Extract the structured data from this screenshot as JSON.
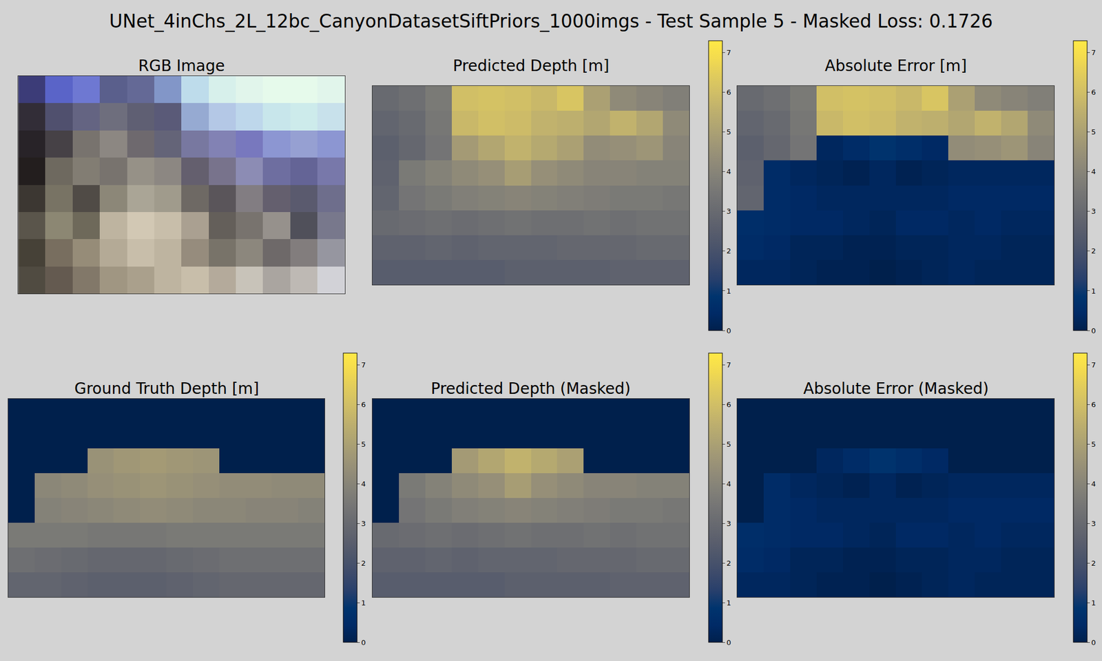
{
  "title": "UNet_4inChs_2L_12bc_CanyonDatasetSiftPriors_1000imgs - Test Sample 5 - Masked Loss: 0.1726",
  "chart_data": [
    {
      "type": "image",
      "title": "RGB Image",
      "tick_labels": false,
      "z": [
        [
          [
            60,
            60,
            120
          ],
          [
            90,
            100,
            200
          ],
          [
            110,
            120,
            210
          ],
          [
            90,
            95,
            140
          ],
          [
            100,
            105,
            150
          ],
          [
            130,
            150,
            200
          ],
          [
            190,
            220,
            235
          ],
          [
            215,
            240,
            235
          ],
          [
            225,
            245,
            235
          ],
          [
            230,
            250,
            235
          ],
          [
            230,
            250,
            235
          ],
          [
            225,
            245,
            235
          ]
        ],
        [
          [
            50,
            45,
            55
          ],
          [
            80,
            80,
            110
          ],
          [
            100,
            100,
            130
          ],
          [
            110,
            110,
            125
          ],
          [
            95,
            95,
            115
          ],
          [
            90,
            90,
            120
          ],
          [
            150,
            170,
            210
          ],
          [
            180,
            200,
            230
          ],
          [
            190,
            215,
            235
          ],
          [
            200,
            230,
            235
          ],
          [
            205,
            235,
            235
          ],
          [
            200,
            225,
            235
          ]
        ],
        [
          [
            40,
            35,
            40
          ],
          [
            70,
            65,
            70
          ],
          [
            120,
            115,
            110
          ],
          [
            140,
            135,
            130
          ],
          [
            110,
            105,
            110
          ],
          [
            100,
            100,
            120
          ],
          [
            120,
            120,
            160
          ],
          [
            130,
            130,
            180
          ],
          [
            120,
            120,
            190
          ],
          [
            140,
            150,
            210
          ],
          [
            150,
            160,
            210
          ],
          [
            140,
            150,
            210
          ]
        ],
        [
          [
            35,
            30,
            30
          ],
          [
            110,
            105,
            95
          ],
          [
            130,
            125,
            115
          ],
          [
            120,
            115,
            110
          ],
          [
            150,
            145,
            135
          ],
          [
            140,
            135,
            130
          ],
          [
            100,
            95,
            110
          ],
          [
            120,
            115,
            140
          ],
          [
            140,
            140,
            180
          ],
          [
            110,
            110,
            160
          ],
          [
            100,
            100,
            150
          ],
          [
            120,
            120,
            170
          ]
        ],
        [
          [
            60,
            55,
            50
          ],
          [
            120,
            115,
            100
          ],
          [
            80,
            75,
            70
          ],
          [
            140,
            135,
            120
          ],
          [
            170,
            165,
            150
          ],
          [
            160,
            155,
            140
          ],
          [
            110,
            105,
            100
          ],
          [
            90,
            85,
            90
          ],
          [
            130,
            125,
            130
          ],
          [
            100,
            95,
            110
          ],
          [
            90,
            90,
            110
          ],
          [
            110,
            110,
            140
          ]
        ],
        [
          [
            90,
            85,
            75
          ],
          [
            140,
            135,
            115
          ],
          [
            110,
            105,
            90
          ],
          [
            190,
            180,
            160
          ],
          [
            210,
            200,
            180
          ],
          [
            200,
            190,
            170
          ],
          [
            170,
            160,
            145
          ],
          [
            100,
            95,
            90
          ],
          [
            120,
            115,
            110
          ],
          [
            150,
            145,
            140
          ],
          [
            80,
            80,
            90
          ],
          [
            120,
            120,
            140
          ]
        ],
        [
          [
            70,
            65,
            55
          ],
          [
            120,
            110,
            95
          ],
          [
            150,
            140,
            120
          ],
          [
            180,
            170,
            150
          ],
          [
            200,
            190,
            170
          ],
          [
            190,
            180,
            160
          ],
          [
            150,
            140,
            125
          ],
          [
            120,
            115,
            105
          ],
          [
            140,
            135,
            125
          ],
          [
            110,
            105,
            105
          ],
          [
            130,
            125,
            125
          ],
          [
            150,
            150,
            160
          ]
        ],
        [
          [
            80,
            75,
            65
          ],
          [
            100,
            90,
            80
          ],
          [
            130,
            120,
            105
          ],
          [
            160,
            150,
            130
          ],
          [
            170,
            160,
            140
          ],
          [
            190,
            180,
            160
          ],
          [
            200,
            190,
            170
          ],
          [
            180,
            170,
            155
          ],
          [
            200,
            195,
            185
          ],
          [
            170,
            165,
            160
          ],
          [
            190,
            185,
            180
          ],
          [
            210,
            210,
            215
          ]
        ]
      ]
    },
    {
      "type": "heatmap",
      "title": "Predicted Depth [m]",
      "color": "cividis",
      "tick_labels": false,
      "colorbar_range": [
        0,
        7.3
      ],
      "colorbar_ticks": [
        0,
        1,
        2,
        3,
        4,
        5,
        6,
        7
      ],
      "z": [
        [
          3.0,
          3.2,
          3.6,
          6.0,
          6.1,
          6.0,
          5.8,
          6.2,
          5.0,
          4.2,
          4.0,
          3.8
        ],
        [
          2.8,
          3.0,
          3.5,
          5.8,
          6.0,
          5.9,
          5.6,
          5.5,
          5.2,
          5.6,
          5.2,
          4.2
        ],
        [
          2.6,
          2.9,
          3.4,
          4.8,
          5.2,
          5.6,
          5.3,
          5.0,
          4.3,
          4.4,
          4.6,
          4.0
        ],
        [
          2.7,
          3.6,
          3.9,
          4.2,
          4.4,
          4.9,
          4.4,
          4.2,
          4.0,
          4.0,
          3.9,
          3.9
        ],
        [
          2.8,
          3.4,
          3.6,
          3.8,
          3.9,
          4.0,
          3.9,
          3.8,
          3.7,
          3.6,
          3.6,
          3.5
        ],
        [
          3.0,
          3.1,
          3.2,
          3.1,
          3.2,
          3.3,
          3.2,
          3.2,
          3.3,
          3.2,
          3.3,
          3.3
        ],
        [
          2.7,
          2.7,
          2.8,
          2.7,
          2.8,
          2.8,
          2.8,
          2.9,
          2.9,
          2.9,
          3.0,
          3.0
        ],
        [
          2.5,
          2.5,
          2.5,
          2.5,
          2.5,
          2.6,
          2.6,
          2.6,
          2.6,
          2.7,
          2.7,
          2.7
        ]
      ]
    },
    {
      "type": "heatmap",
      "title": "Absolute Error [m]",
      "color": "cividis",
      "tick_labels": false,
      "colorbar_range": [
        0,
        7.3
      ],
      "colorbar_ticks": [
        0,
        1,
        2,
        3,
        4,
        5,
        6,
        7
      ],
      "z": [
        [
          3.0,
          3.2,
          3.6,
          6.0,
          6.1,
          6.0,
          5.8,
          6.2,
          5.0,
          4.2,
          4.0,
          3.8
        ],
        [
          2.8,
          3.0,
          3.5,
          5.8,
          6.0,
          5.9,
          5.6,
          5.5,
          5.2,
          5.6,
          5.2,
          4.2
        ],
        [
          2.6,
          2.9,
          3.4,
          0.3,
          0.5,
          0.8,
          0.6,
          0.4,
          4.3,
          4.4,
          4.6,
          4.0
        ],
        [
          2.7,
          0.5,
          0.3,
          0.2,
          0.1,
          0.3,
          0.1,
          0.2,
          0.3,
          0.3,
          0.3,
          0.3
        ],
        [
          2.8,
          0.5,
          0.4,
          0.3,
          0.3,
          0.3,
          0.3,
          0.3,
          0.4,
          0.4,
          0.4,
          0.4
        ],
        [
          0.6,
          0.5,
          0.4,
          0.4,
          0.3,
          0.2,
          0.4,
          0.4,
          0.3,
          0.4,
          0.3,
          0.3
        ],
        [
          0.5,
          0.4,
          0.2,
          0.2,
          0.1,
          0.1,
          0.2,
          0.2,
          0.3,
          0.3,
          0.2,
          0.2
        ],
        [
          0.3,
          0.3,
          0.2,
          0.1,
          0.1,
          0.0,
          0.1,
          0.2,
          0.3,
          0.2,
          0.2,
          0.2
        ]
      ]
    },
    {
      "type": "heatmap",
      "title": "Ground Truth Depth [m]",
      "color": "cividis",
      "tick_labels": false,
      "colorbar_range": [
        0,
        7.3
      ],
      "colorbar_ticks": [
        0,
        1,
        2,
        3,
        4,
        5,
        6,
        7
      ],
      "z": [
        [
          0,
          0,
          0,
          0,
          0,
          0,
          0,
          0,
          0,
          0,
          0,
          0
        ],
        [
          0,
          0,
          0,
          0,
          0,
          0,
          0,
          0,
          0,
          0,
          0,
          0
        ],
        [
          0,
          0,
          0,
          4.5,
          4.7,
          4.8,
          4.7,
          4.6,
          0,
          0,
          0,
          0
        ],
        [
          0,
          4.1,
          4.2,
          4.4,
          4.5,
          4.6,
          4.5,
          4.4,
          4.3,
          4.3,
          4.2,
          4.2
        ],
        [
          0,
          3.9,
          4.0,
          4.1,
          4.2,
          4.3,
          4.2,
          4.1,
          4.1,
          4.0,
          4.0,
          3.9
        ],
        [
          3.6,
          3.6,
          3.6,
          3.5,
          3.5,
          3.5,
          3.6,
          3.6,
          3.6,
          3.6,
          3.6,
          3.6
        ],
        [
          3.2,
          3.1,
          3.0,
          2.9,
          2.9,
          2.9,
          3.0,
          3.1,
          3.2,
          3.2,
          3.2,
          3.2
        ],
        [
          2.8,
          2.8,
          2.7,
          2.6,
          2.6,
          2.6,
          2.7,
          2.8,
          2.9,
          2.9,
          2.9,
          2.9
        ]
      ]
    },
    {
      "type": "heatmap",
      "title": "Predicted Depth (Masked)",
      "color": "cividis",
      "tick_labels": false,
      "colorbar_range": [
        0,
        7.3
      ],
      "colorbar_ticks": [
        0,
        1,
        2,
        3,
        4,
        5,
        6,
        7
      ],
      "z": [
        [
          0,
          0,
          0,
          0,
          0,
          0,
          0,
          0,
          0,
          0,
          0,
          0
        ],
        [
          0,
          0,
          0,
          0,
          0,
          0,
          0,
          0,
          0,
          0,
          0,
          0
        ],
        [
          0,
          0,
          0,
          4.8,
          5.2,
          5.6,
          5.3,
          5.0,
          0,
          0,
          0,
          0
        ],
        [
          0,
          3.6,
          3.9,
          4.2,
          4.4,
          4.9,
          4.4,
          4.2,
          4.0,
          4.0,
          3.9,
          3.9
        ],
        [
          0,
          3.4,
          3.6,
          3.8,
          3.9,
          4.0,
          3.9,
          3.8,
          3.7,
          3.6,
          3.6,
          3.5
        ],
        [
          3.0,
          3.1,
          3.2,
          3.1,
          3.2,
          3.3,
          3.2,
          3.2,
          3.3,
          3.2,
          3.3,
          3.3
        ],
        [
          2.7,
          2.7,
          2.8,
          2.7,
          2.8,
          2.8,
          2.8,
          2.9,
          2.9,
          2.9,
          3.0,
          3.0
        ],
        [
          2.5,
          2.5,
          2.5,
          2.5,
          2.5,
          2.6,
          2.6,
          2.6,
          2.6,
          2.7,
          2.7,
          2.7
        ]
      ]
    },
    {
      "type": "heatmap",
      "title": "Absolute Error (Masked)",
      "color": "cividis",
      "tick_labels": false,
      "colorbar_range": [
        0,
        7.3
      ],
      "colorbar_ticks": [
        0,
        1,
        2,
        3,
        4,
        5,
        6,
        7
      ],
      "z": [
        [
          0,
          0,
          0,
          0,
          0,
          0,
          0,
          0,
          0,
          0,
          0,
          0
        ],
        [
          0,
          0,
          0,
          0,
          0,
          0,
          0,
          0,
          0,
          0,
          0,
          0
        ],
        [
          0,
          0,
          0,
          0.3,
          0.5,
          0.8,
          0.6,
          0.4,
          0,
          0,
          0,
          0
        ],
        [
          0,
          0.5,
          0.3,
          0.2,
          0.1,
          0.3,
          0.1,
          0.2,
          0.3,
          0.3,
          0.3,
          0.3
        ],
        [
          0,
          0.5,
          0.4,
          0.3,
          0.3,
          0.3,
          0.3,
          0.3,
          0.4,
          0.4,
          0.4,
          0.4
        ],
        [
          0.6,
          0.5,
          0.4,
          0.4,
          0.3,
          0.2,
          0.4,
          0.4,
          0.3,
          0.4,
          0.3,
          0.3
        ],
        [
          0.5,
          0.4,
          0.2,
          0.2,
          0.1,
          0.1,
          0.2,
          0.2,
          0.3,
          0.3,
          0.2,
          0.2
        ],
        [
          0.3,
          0.3,
          0.2,
          0.1,
          0.1,
          0.0,
          0.1,
          0.2,
          0.3,
          0.2,
          0.2,
          0.2
        ]
      ]
    }
  ]
}
